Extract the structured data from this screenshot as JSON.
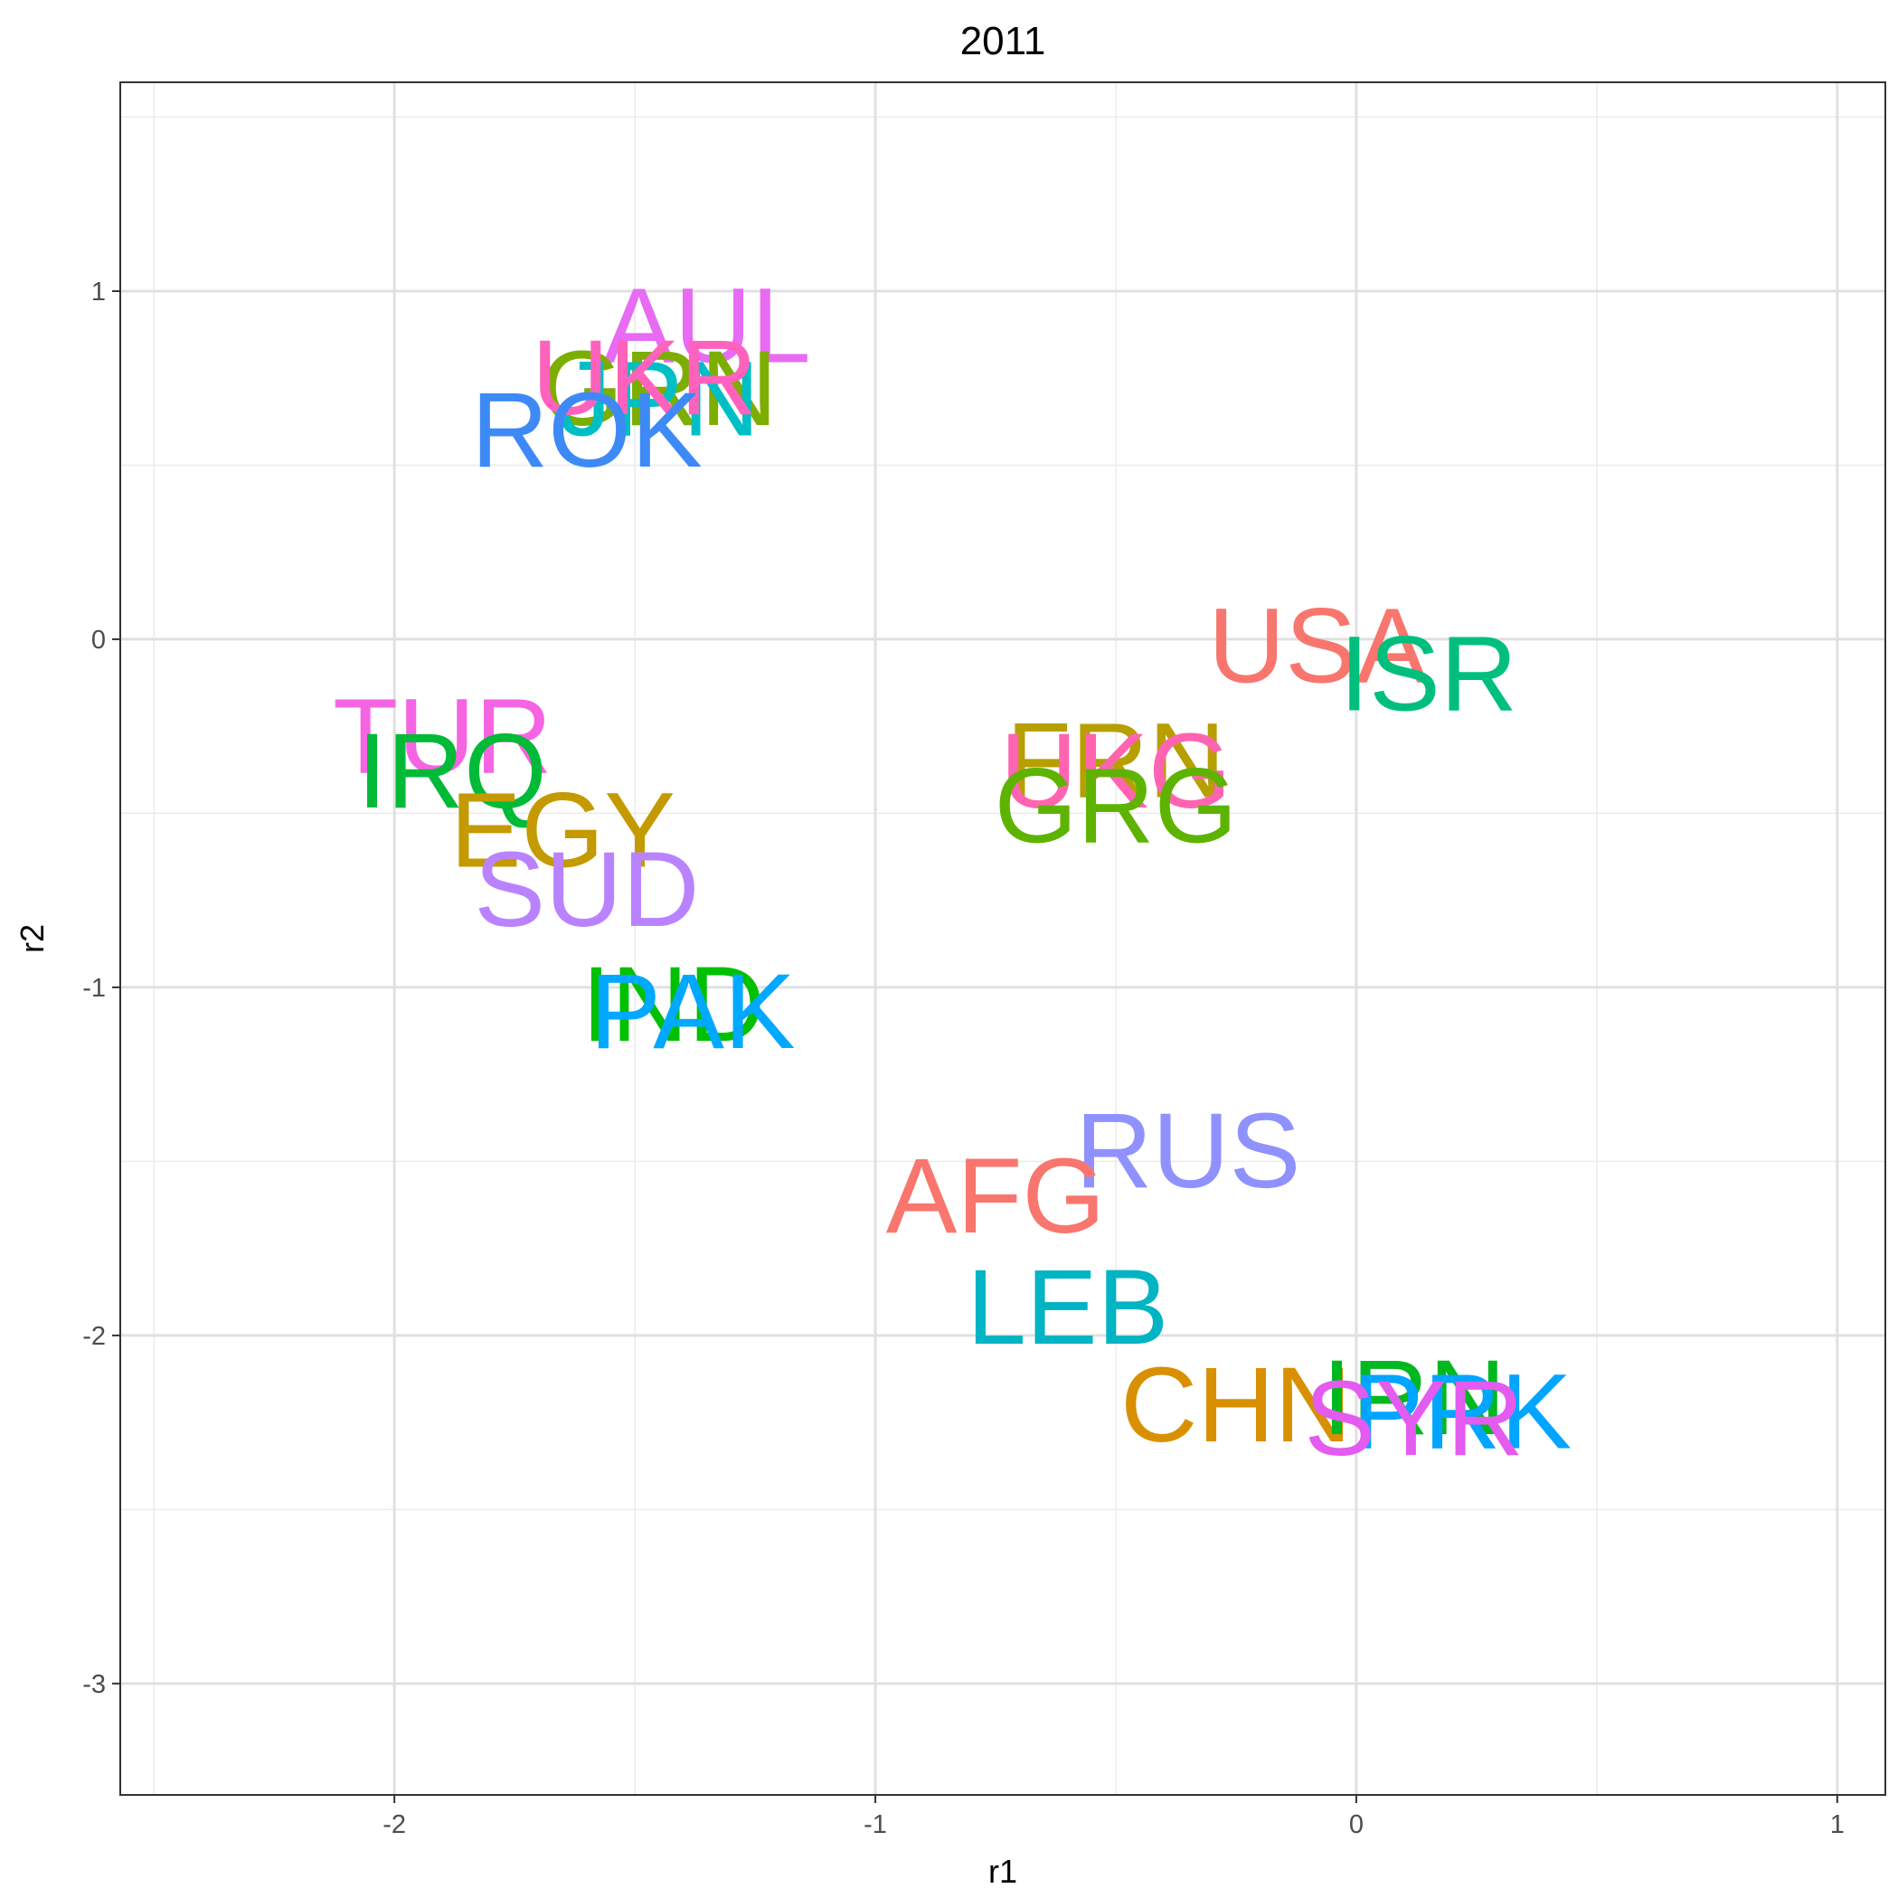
{
  "chart_data": {
    "type": "scatter",
    "title": "2011",
    "xlabel": "r1",
    "ylabel": "r2",
    "xlim": [
      -2.57,
      1.1
    ],
    "ylim": [
      -3.32,
      1.6
    ],
    "x_ticks": [
      -2,
      -1,
      0,
      1
    ],
    "y_ticks": [
      -3,
      -2,
      -1,
      0,
      1
    ],
    "x_tick_labels": [
      "-2",
      "-1",
      "0",
      "1"
    ],
    "y_tick_labels": [
      "-3",
      "-2",
      "-1",
      "0",
      "1"
    ],
    "grid": true,
    "legend": "none",
    "points": [
      {
        "label": "AUL",
        "x": -1.35,
        "y": 0.9,
        "color": "#E76BF3"
      },
      {
        "label": "GRN",
        "x": -1.45,
        "y": 0.72,
        "color": "#7CAE00"
      },
      {
        "label": "JPN",
        "x": -1.45,
        "y": 0.69,
        "color": "#00BFC4"
      },
      {
        "label": "UKR",
        "x": -1.48,
        "y": 0.75,
        "color": "#FF62BC"
      },
      {
        "label": "ROK",
        "x": -1.6,
        "y": 0.6,
        "color": "#3D8AF7"
      },
      {
        "label": "USA",
        "x": -0.08,
        "y": -0.02,
        "color": "#F8766D"
      },
      {
        "label": "ISR",
        "x": 0.15,
        "y": -0.1,
        "color": "#00BF7D"
      },
      {
        "label": "TUR",
        "x": -1.9,
        "y": -0.28,
        "color": "#F564E3"
      },
      {
        "label": "IRQ",
        "x": -1.88,
        "y": -0.38,
        "color": "#00BA38"
      },
      {
        "label": "FRN",
        "x": -0.5,
        "y": -0.35,
        "color": "#B79F00"
      },
      {
        "label": "UKG",
        "x": -0.5,
        "y": -0.38,
        "color": "#FF64B0"
      },
      {
        "label": "GRG",
        "x": -0.5,
        "y": -0.48,
        "color": "#5EB300"
      },
      {
        "label": "EGY",
        "x": -1.65,
        "y": -0.55,
        "color": "#C49A00"
      },
      {
        "label": "SUD",
        "x": -1.6,
        "y": -0.72,
        "color": "#B983FF"
      },
      {
        "label": "IND",
        "x": -1.42,
        "y": -1.05,
        "color": "#00C000"
      },
      {
        "label": "PAK",
        "x": -1.38,
        "y": -1.07,
        "color": "#00A9FF"
      },
      {
        "label": "RUS",
        "x": -0.35,
        "y": -1.47,
        "color": "#8F91FF"
      },
      {
        "label": "AFG",
        "x": -0.75,
        "y": -1.6,
        "color": "#F8766D"
      },
      {
        "label": "LEB",
        "x": -0.6,
        "y": -1.92,
        "color": "#00B4C4"
      },
      {
        "label": "CHN",
        "x": -0.25,
        "y": -2.2,
        "color": "#D89000"
      },
      {
        "label": "IRN",
        "x": 0.12,
        "y": -2.18,
        "color": "#00B81F"
      },
      {
        "label": "PRK",
        "x": 0.22,
        "y": -2.22,
        "color": "#00A5FF"
      },
      {
        "label": "SYR",
        "x": 0.12,
        "y": -2.24,
        "color": "#E45BF0"
      }
    ]
  }
}
